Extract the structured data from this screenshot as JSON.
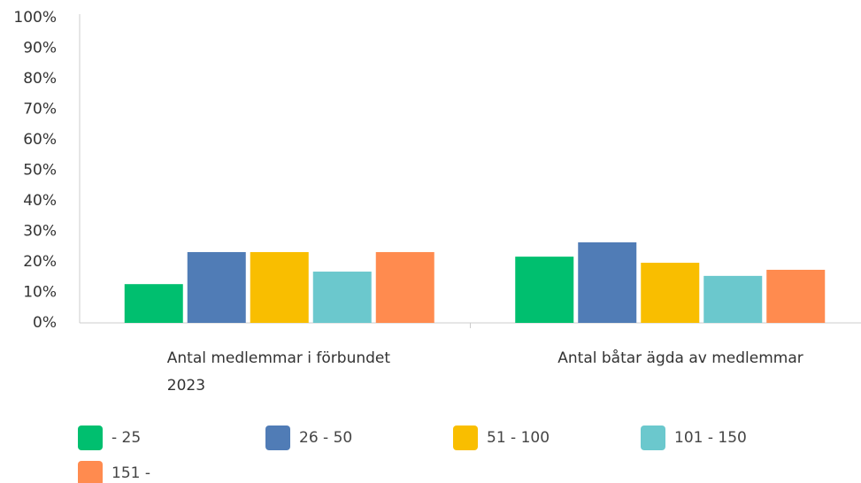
{
  "chart_data": {
    "type": "bar",
    "categories": [
      "Antal medlemmar i förbundet 2023",
      "Antal båtar ägda av medlemmar"
    ],
    "series": [
      {
        "name": "- 25",
        "color": "#00bf6f",
        "values": [
          12.7,
          21.7
        ]
      },
      {
        "name": "26 - 50",
        "color": "#507cb6",
        "values": [
          23.2,
          26.4
        ]
      },
      {
        "name": "51 - 100",
        "color": "#f9be00",
        "values": [
          23.2,
          19.7
        ]
      },
      {
        "name": "101 - 150",
        "color": "#6bc8cd",
        "values": [
          16.8,
          15.4
        ]
      },
      {
        "name": "151 -",
        "color": "#ff8b4f",
        "values": [
          23.2,
          17.4
        ]
      }
    ],
    "ylim": [
      0,
      100
    ],
    "yticks": [
      {
        "value": 0,
        "label": "0%"
      },
      {
        "value": 10,
        "label": "10%"
      },
      {
        "value": 20,
        "label": "20%"
      },
      {
        "value": 30,
        "label": "30%"
      },
      {
        "value": 40,
        "label": "40%"
      },
      {
        "value": 50,
        "label": "50%"
      },
      {
        "value": 60,
        "label": "60%"
      },
      {
        "value": 70,
        "label": "70%"
      },
      {
        "value": 80,
        "label": "80%"
      },
      {
        "value": 90,
        "label": "90%"
      },
      {
        "value": 100,
        "label": "100%"
      }
    ],
    "grid": false
  }
}
